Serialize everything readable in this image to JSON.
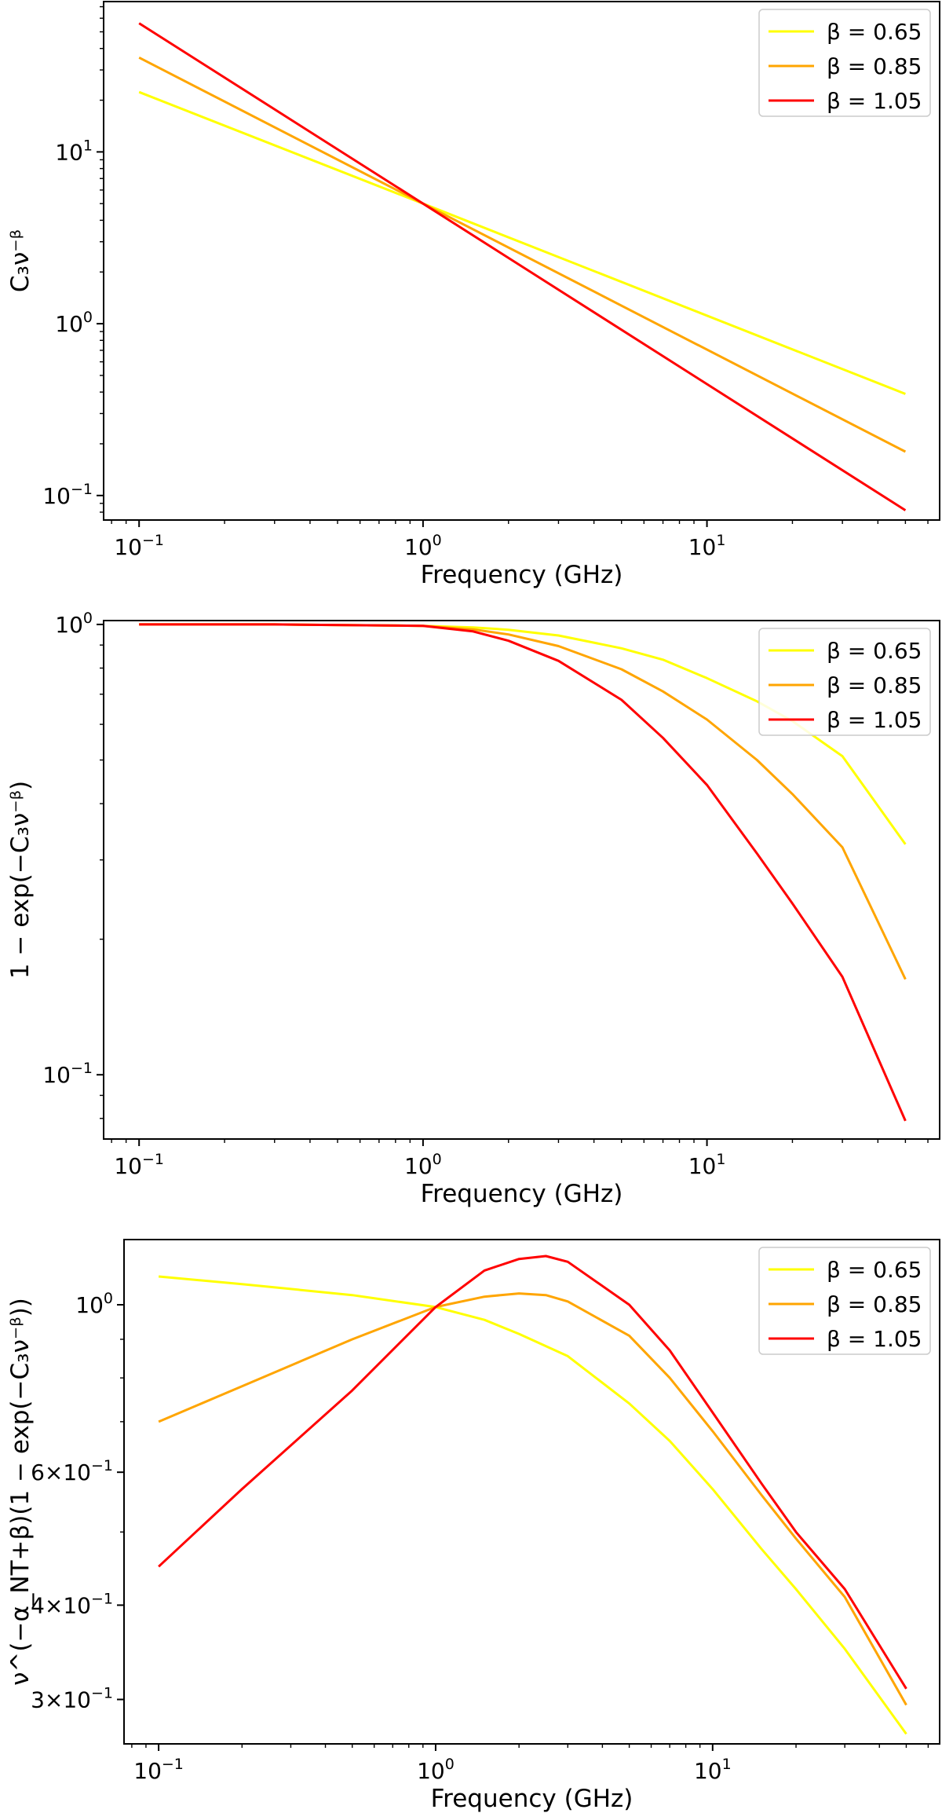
{
  "chart_data": [
    {
      "type": "line",
      "x_scale": "log",
      "y_scale": "log",
      "xlabel": "Frequency (GHz)",
      "ylabel": "C₃ν⁻ᵝ",
      "xlim": [
        0.075,
        66
      ],
      "ylim": [
        0.072,
        75
      ],
      "x_ticks": [
        {
          "value": 0.1,
          "base": "10",
          "exp": "−1"
        },
        {
          "value": 1,
          "base": "10",
          "exp": "0"
        },
        {
          "value": 10,
          "base": "10",
          "exp": "1"
        }
      ],
      "y_ticks": [
        {
          "value": 0.1,
          "base": "10",
          "exp": "−1"
        },
        {
          "value": 1,
          "base": "10",
          "exp": "0"
        },
        {
          "value": 10,
          "base": "10",
          "exp": "1"
        }
      ],
      "legend_position": "top-right",
      "series": [
        {
          "name": "β = 0.65",
          "color": "#ffff00",
          "x": [
            0.1,
            1,
            50
          ],
          "values": [
            22.3,
            5.0,
            0.39
          ]
        },
        {
          "name": "β = 0.85",
          "color": "#ffa500",
          "x": [
            0.1,
            1,
            50
          ],
          "values": [
            35.4,
            5.0,
            0.18
          ]
        },
        {
          "name": "β = 1.05",
          "color": "#ff0000",
          "x": [
            0.1,
            1,
            50
          ],
          "values": [
            56.1,
            5.0,
            0.082
          ]
        }
      ]
    },
    {
      "type": "line",
      "x_scale": "log",
      "y_scale": "log",
      "xlabel": "Frequency (GHz)",
      "ylabel": "1 − exp(−C₃ν⁻ᵝ)",
      "xlim": [
        0.075,
        66
      ],
      "ylim": [
        0.072,
        1.02
      ],
      "x_ticks": [
        {
          "value": 0.1,
          "base": "10",
          "exp": "−1"
        },
        {
          "value": 1,
          "base": "10",
          "exp": "0"
        },
        {
          "value": 10,
          "base": "10",
          "exp": "1"
        }
      ],
      "y_ticks": [
        {
          "value": 0.1,
          "base": "10",
          "exp": "−1"
        },
        {
          "value": 1,
          "base": "10",
          "exp": "0"
        }
      ],
      "legend_position": "top-right",
      "series": [
        {
          "name": "β = 0.65",
          "color": "#ffff00",
          "x": [
            0.1,
            0.3,
            1,
            1.5,
            2,
            3,
            5,
            7,
            10,
            15,
            20,
            30,
            50
          ],
          "values": [
            1.0,
            1.0,
            0.993,
            0.985,
            0.973,
            0.945,
            0.885,
            0.835,
            0.76,
            0.675,
            0.61,
            0.51,
            0.325
          ]
        },
        {
          "name": "β = 0.85",
          "color": "#ffa500",
          "x": [
            0.1,
            0.3,
            1,
            1.5,
            2,
            3,
            5,
            7,
            10,
            15,
            20,
            30,
            50
          ],
          "values": [
            1.0,
            1.0,
            0.993,
            0.975,
            0.95,
            0.895,
            0.795,
            0.71,
            0.615,
            0.5,
            0.42,
            0.32,
            0.163
          ]
        },
        {
          "name": "β = 1.05",
          "color": "#ff0000",
          "x": [
            0.1,
            0.3,
            1,
            1.5,
            2,
            3,
            5,
            7,
            10,
            15,
            20,
            30,
            50
          ],
          "values": [
            1.0,
            1.0,
            0.993,
            0.965,
            0.92,
            0.83,
            0.68,
            0.56,
            0.44,
            0.31,
            0.24,
            0.165,
            0.079
          ]
        }
      ]
    },
    {
      "type": "line",
      "x_scale": "log",
      "y_scale": "log",
      "xlabel": "Frequency (GHz)",
      "ylabel": "ν^(−α_NT+β)(1 − exp(−C₃ν⁻ᵝ))",
      "xlim": [
        0.075,
        66
      ],
      "ylim": [
        0.262,
        1.22
      ],
      "x_ticks": [
        {
          "value": 0.1,
          "base": "10",
          "exp": "−1"
        },
        {
          "value": 1,
          "base": "10",
          "exp": "0"
        },
        {
          "value": 10,
          "base": "10",
          "exp": "1"
        }
      ],
      "y_ticks": [
        {
          "value": 0.3,
          "base": "3×10",
          "exp": "−1"
        },
        {
          "value": 0.4,
          "base": "4×10",
          "exp": "−1"
        },
        {
          "value": 0.6,
          "base": "6×10",
          "exp": "−1"
        },
        {
          "value": 1,
          "base": "10",
          "exp": "0"
        }
      ],
      "legend_position": "top-right",
      "series": [
        {
          "name": "β = 0.65",
          "color": "#ffff00",
          "x": [
            0.1,
            0.2,
            0.5,
            1,
            1.5,
            2,
            3,
            5,
            7,
            10,
            15,
            20,
            30,
            50
          ],
          "values": [
            1.09,
            1.065,
            1.03,
            0.993,
            0.955,
            0.915,
            0.855,
            0.74,
            0.66,
            0.57,
            0.475,
            0.42,
            0.35,
            0.27
          ]
        },
        {
          "name": "β = 0.85",
          "color": "#ffa500",
          "x": [
            0.1,
            0.2,
            0.5,
            1,
            1.5,
            2,
            2.5,
            3,
            5,
            7,
            10,
            15,
            20,
            30,
            50
          ],
          "values": [
            0.7,
            0.78,
            0.9,
            0.993,
            1.025,
            1.035,
            1.03,
            1.01,
            0.91,
            0.8,
            0.68,
            0.56,
            0.49,
            0.41,
            0.295
          ]
        },
        {
          "name": "β = 1.05",
          "color": "#ff0000",
          "x": [
            0.1,
            0.2,
            0.5,
            1,
            1.5,
            2,
            2.5,
            3,
            5,
            7,
            10,
            15,
            20,
            30,
            50
          ],
          "values": [
            0.45,
            0.57,
            0.77,
            0.993,
            1.11,
            1.15,
            1.16,
            1.14,
            1.0,
            0.87,
            0.72,
            0.58,
            0.5,
            0.42,
            0.31
          ]
        }
      ]
    }
  ]
}
